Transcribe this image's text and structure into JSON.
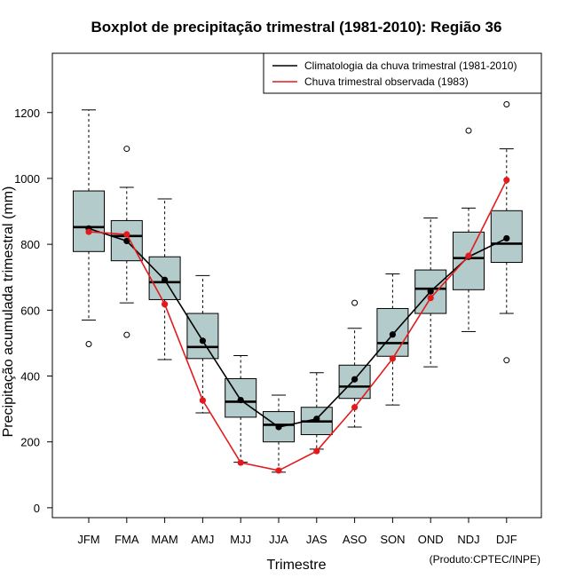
{
  "chart_data": {
    "type": "boxplot",
    "title": "Boxplot de precipitação trimestral (1981-2010): Região 36",
    "xlabel": "Trimestre",
    "ylabel": "Precipitação acumulada trimestral (mm)",
    "ylim": [
      -30,
      1380
    ],
    "yticks": [
      0,
      200,
      400,
      600,
      800,
      1000,
      1200
    ],
    "categories": [
      "JFM",
      "FMA",
      "MAM",
      "AMJ",
      "MJJ",
      "JJA",
      "JAS",
      "ASO",
      "SON",
      "OND",
      "NDJ",
      "DJF"
    ],
    "boxes": [
      {
        "whisker_low": 570,
        "q1": 778,
        "median": 852,
        "q3": 962,
        "whisker_high": 1208,
        "outliers": [
          497
        ]
      },
      {
        "whisker_low": 622,
        "q1": 750,
        "median": 825,
        "q3": 872,
        "whisker_high": 973,
        "outliers": [
          1090,
          525
        ]
      },
      {
        "whisker_low": 450,
        "q1": 632,
        "median": 685,
        "q3": 762,
        "whisker_high": 938,
        "outliers": []
      },
      {
        "whisker_low": 288,
        "q1": 453,
        "median": 488,
        "q3": 590,
        "whisker_high": 705,
        "outliers": []
      },
      {
        "whisker_low": 138,
        "q1": 275,
        "median": 322,
        "q3": 392,
        "whisker_high": 462,
        "outliers": []
      },
      {
        "whisker_low": 108,
        "q1": 200,
        "median": 252,
        "q3": 292,
        "whisker_high": 342,
        "outliers": []
      },
      {
        "whisker_low": 178,
        "q1": 222,
        "median": 262,
        "q3": 305,
        "whisker_high": 410,
        "outliers": []
      },
      {
        "whisker_low": 245,
        "q1": 332,
        "median": 368,
        "q3": 433,
        "whisker_high": 545,
        "outliers": [
          622
        ]
      },
      {
        "whisker_low": 312,
        "q1": 460,
        "median": 500,
        "q3": 605,
        "whisker_high": 710,
        "outliers": []
      },
      {
        "whisker_low": 428,
        "q1": 590,
        "median": 665,
        "q3": 722,
        "whisker_high": 880,
        "outliers": []
      },
      {
        "whisker_low": 535,
        "q1": 662,
        "median": 758,
        "q3": 837,
        "whisker_high": 910,
        "outliers": [
          1145
        ]
      },
      {
        "whisker_low": 590,
        "q1": 745,
        "median": 802,
        "q3": 902,
        "whisker_high": 1090,
        "outliers": [
          1225,
          448
        ]
      }
    ],
    "series": [
      {
        "name": "Climatologia da chuva trimestral (1981-2010)",
        "color": "#000000",
        "values": [
          848,
          810,
          692,
          507,
          327,
          245,
          270,
          390,
          526,
          657,
          762,
          818
        ]
      },
      {
        "name": "Chuva trimestral observada (1983)",
        "color": "#e31a1c",
        "values": [
          838,
          830,
          618,
          326,
          137,
          113,
          172,
          305,
          453,
          637,
          765,
          995
        ]
      }
    ],
    "legend_position": "top-right",
    "box_fill": "#b4cbcb",
    "credit": "(Produto:CPTEC/INPE)"
  }
}
